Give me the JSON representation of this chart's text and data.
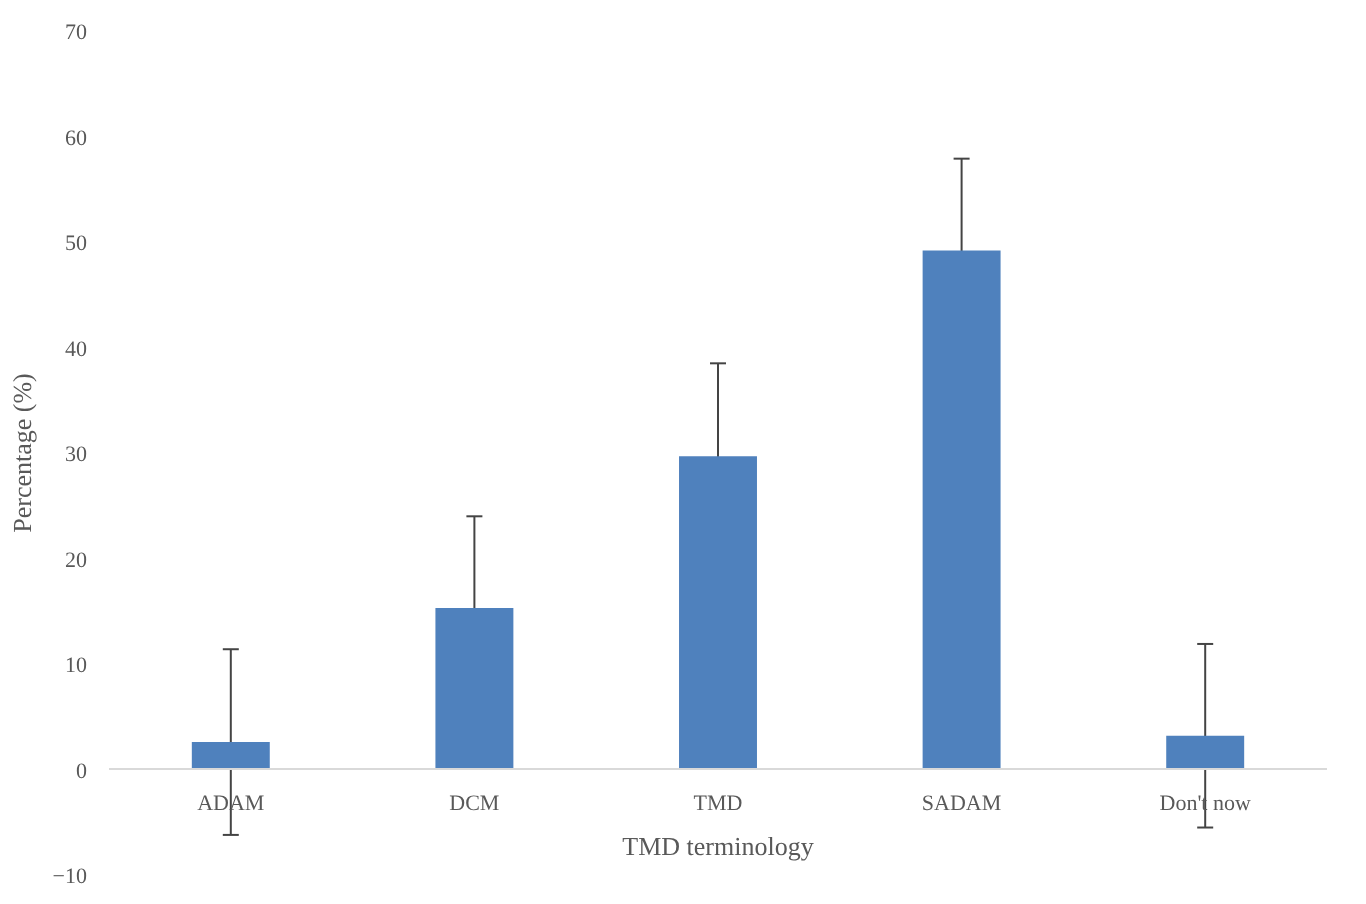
{
  "chart_data": {
    "type": "bar",
    "xlabel": "TMD terminology",
    "ylabel": "Percentage (%)",
    "categories": [
      "ADAM",
      "DCM",
      "TMD",
      "SADAM",
      "Don't now"
    ],
    "values": [
      2.6,
      15.3,
      29.7,
      49.2,
      3.2
    ],
    "errors": [
      8.8,
      8.7,
      8.8,
      8.7,
      8.7
    ],
    "color": "#4f81bd",
    "ylim": [
      -10,
      70
    ],
    "yticks": [
      -10,
      0,
      10,
      20,
      30,
      40,
      50,
      60,
      70
    ],
    "grid": false
  }
}
